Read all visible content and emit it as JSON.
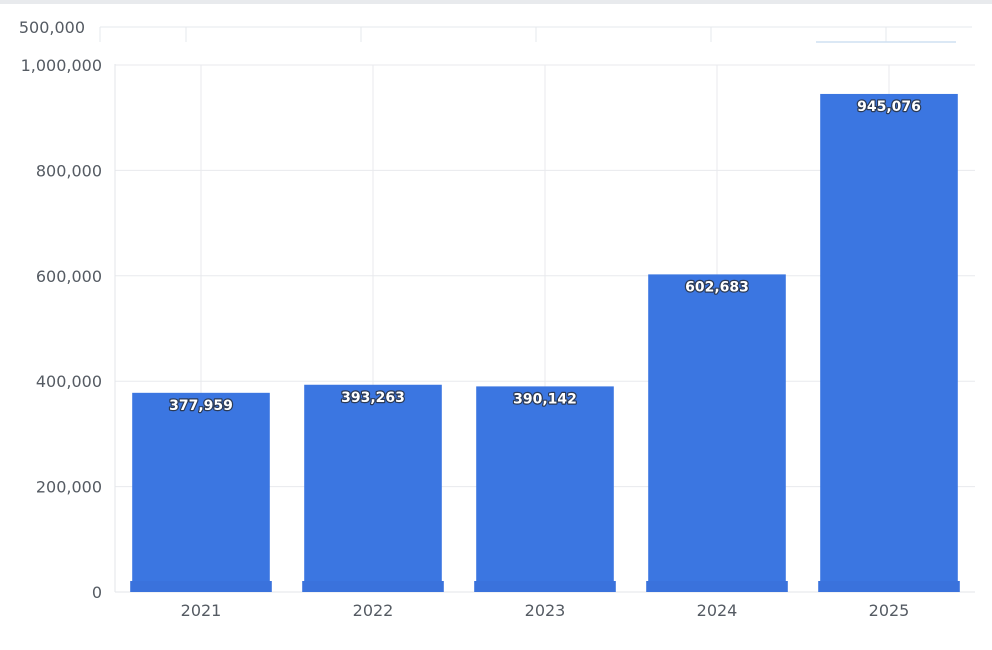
{
  "chart_data": {
    "type": "bar",
    "categories": [
      "2021",
      "2022",
      "2023",
      "2024",
      "2025"
    ],
    "values": [
      377959,
      393263,
      390142,
      602683,
      945076
    ],
    "data_labels": [
      "377,959",
      "393,263",
      "390,142",
      "602,683",
      "945,076"
    ],
    "ylim": [
      0,
      1000000
    ],
    "y_ticks": [
      0,
      200000,
      400000,
      600000,
      800000,
      1000000
    ],
    "y_tick_labels": [
      "0",
      "200,000",
      "400,000",
      "600,000",
      "800,000",
      "1,000,000"
    ],
    "partial_top_tick_label": "500,000",
    "grid": true,
    "bar_color": "#3b76e1",
    "title": "",
    "xlabel": "",
    "ylabel": ""
  }
}
